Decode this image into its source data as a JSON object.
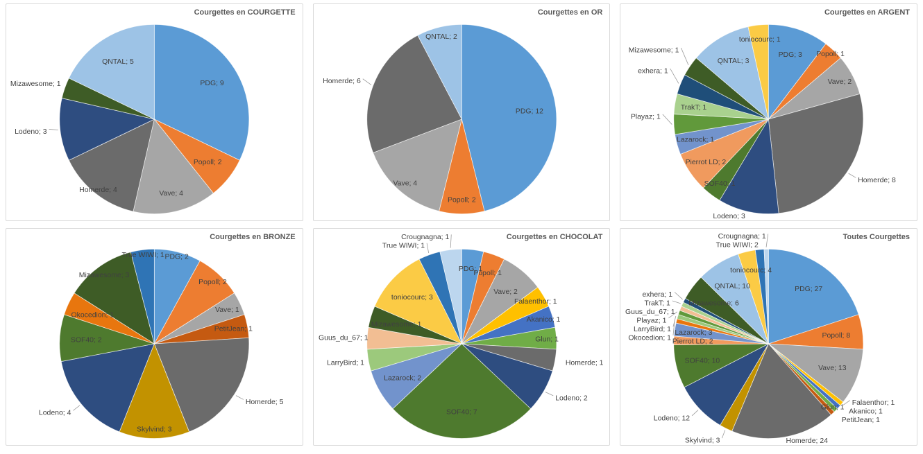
{
  "app": {
    "background": "#FFFFFF",
    "panel_border": "#D9D9D9",
    "title_color": "#595959",
    "label_color": "#404040",
    "leader_color": "#9B9B9B"
  },
  "label_format": "{name}; {value}",
  "palette": {
    "PDG": "#5B9BD5",
    "Popoll": "#ED7D31",
    "Vave": "#A6A6A6",
    "Homerde": "#6B6B6B",
    "Lodeno": "#2E4D80",
    "Mizawesome": "#3E5C26",
    "QNTAL": "#9DC3E6",
    "toniocourc": "#FBCB45",
    "True WIWI": "#2F74B5",
    "Crougnagna": "#BCD6EE",
    "exhera": "#1F4E79",
    "TrakT": "#A9D18E",
    "Playaz": "#61993B",
    "Lazarock": "#7293CC",
    "Pierrot LD": "#F09A5E",
    "SOF40": "#4E7A2E",
    "Skylvind": "#C29200",
    "PetitJean": "#C55A11",
    "Okocedion": "#E8760E",
    "LarryBird": "#9CC97C",
    "Guus_du_67": "#F2BE93",
    "Falaenthor": "#FFC000",
    "Akanico": "#4472C4",
    "Glun": "#70AD47"
  },
  "chart_data": [
    {
      "type": "pie",
      "title": "Courgettes en COURGETTE",
      "total": 28,
      "direction": "clockwise",
      "start_angle_deg": 0,
      "legend": "none",
      "slices": [
        {
          "name": "PDG",
          "value": 9
        },
        {
          "name": "Popoll",
          "value": 2
        },
        {
          "name": "Vave",
          "value": 4,
          "label_r": 0.8
        },
        {
          "name": "Homerde",
          "value": 4,
          "label_r": 0.95
        },
        {
          "name": "Lodeno",
          "value": 3,
          "label_out": true
        },
        {
          "name": "Mizawesome",
          "value": 1
        },
        {
          "name": "QNTAL",
          "value": 5
        }
      ]
    },
    {
      "type": "pie",
      "title": "Courgettes en OR",
      "total": 26,
      "direction": "clockwise",
      "start_angle_deg": 0,
      "legend": "none",
      "slices": [
        {
          "name": "PDG",
          "value": 12
        },
        {
          "name": "Popoll",
          "value": 2,
          "label_r": 0.85
        },
        {
          "name": "Vave",
          "value": 4,
          "label_r": 0.9
        },
        {
          "name": "Homerde",
          "value": 6,
          "label_out": true
        },
        {
          "name": "QNTAL",
          "value": 2,
          "label_in": true,
          "label_r": 0.9
        }
      ]
    },
    {
      "type": "pie",
      "title": "Courgettes en ARGENT",
      "total": 29,
      "direction": "clockwise",
      "start_angle_deg": 0,
      "legend": "none",
      "slices": [
        {
          "name": "PDG",
          "value": 3
        },
        {
          "name": "Popoll",
          "value": 1,
          "label_in": true,
          "label_r": 0.95
        },
        {
          "name": "Vave",
          "value": 2,
          "label_r": 0.85
        },
        {
          "name": "Homerde",
          "value": 8,
          "label_out": true
        },
        {
          "name": "Lodeno",
          "value": 3,
          "label_out": true
        },
        {
          "name": "SOF40",
          "value": 1,
          "label_in": true,
          "label_r": 0.85
        },
        {
          "name": "Pierrot LD",
          "value": 2,
          "label_r": 0.8
        },
        {
          "name": "Lazarock",
          "value": 1,
          "label_in": true,
          "label_r": 0.8
        },
        {
          "name": "Playaz",
          "value": 1,
          "label_out": true
        },
        {
          "name": "TrakT",
          "value": 1,
          "label_in": true,
          "label_r": 0.8
        },
        {
          "name": "exhera",
          "value": 1,
          "label_out": true
        },
        {
          "name": "Mizawesome",
          "value": 1,
          "label_out": true
        },
        {
          "name": "QNTAL",
          "value": 3
        },
        {
          "name": "toniocourc",
          "value": 1,
          "label_in": true,
          "label_r": 0.85
        }
      ]
    },
    {
      "type": "pie",
      "title": "Courgettes en BRONZE",
      "total": 25,
      "direction": "clockwise",
      "start_angle_deg": 0,
      "legend": "none",
      "slices": [
        {
          "name": "PDG",
          "value": 2,
          "label_r": 0.95
        },
        {
          "name": "Popoll",
          "value": 2,
          "label_r": 0.9
        },
        {
          "name": "Vave",
          "value": 1,
          "label_in": true,
          "label_r": 0.85
        },
        {
          "name": "PetitJean",
          "value": 1,
          "label_in": true,
          "label_r": 0.85
        },
        {
          "name": "Homerde",
          "value": 5,
          "label_out": true
        },
        {
          "name": "Skylvind",
          "value": 3,
          "label_r": 0.9
        },
        {
          "name": "Lodeno",
          "value": 4,
          "label_out": true
        },
        {
          "name": "SOF40",
          "value": 2
        },
        {
          "name": "Okocedion",
          "value": 1,
          "label_in": true
        },
        {
          "name": "Mizawesome",
          "value": 3,
          "label_r": 0.9
        },
        {
          "name": "True WIWI",
          "value": 1,
          "label_in": true,
          "label_r": 0.95
        }
      ]
    },
    {
      "type": "pie",
      "title": "Courgettes en CHOCOLAT",
      "total": 27,
      "direction": "clockwise",
      "start_angle_deg": 0,
      "legend": "none",
      "slices": [
        {
          "name": "PDG",
          "value": 1,
          "label_in": true,
          "label_r": 0.8
        },
        {
          "name": "Popoll",
          "value": 1,
          "label_in": true,
          "label_r": 0.8
        },
        {
          "name": "Vave",
          "value": 2
        },
        {
          "name": "Falaenthor",
          "value": 1,
          "label_in": true,
          "label_r": 0.9
        },
        {
          "name": "Akanico",
          "value": 1,
          "label_in": true,
          "label_r": 0.9
        },
        {
          "name": "Glun",
          "value": 1,
          "label_in": true,
          "label_r": 0.9
        },
        {
          "name": "Homerde",
          "value": 1,
          "label_out": true
        },
        {
          "name": "Lodeno",
          "value": 2,
          "label_out": true
        },
        {
          "name": "SOF40",
          "value": 7
        },
        {
          "name": "Lazarock",
          "value": 2
        },
        {
          "name": "LarryBird",
          "value": 1,
          "label_out": true
        },
        {
          "name": "Guus_du_67",
          "value": 1,
          "label_out": true
        },
        {
          "name": "Mizawesome",
          "value": 1,
          "label_in": true
        },
        {
          "name": "toniocourc",
          "value": 3
        },
        {
          "name": "True WIWI",
          "value": 1,
          "label_out": true
        },
        {
          "name": "Crougnagna",
          "value": 1,
          "label_out": true
        }
      ]
    },
    {
      "type": "pie",
      "title": "Toutes Courgettes",
      "total": 135,
      "direction": "clockwise",
      "start_angle_deg": 0,
      "legend": "none",
      "slices": [
        {
          "name": "PDG",
          "value": 27
        },
        {
          "name": "Popoll",
          "value": 8
        },
        {
          "name": "Vave",
          "value": 13
        },
        {
          "name": "Falaenthor",
          "value": 1,
          "label_out": true
        },
        {
          "name": "Akanico",
          "value": 1,
          "label_out": true
        },
        {
          "name": "Glun",
          "value": 1,
          "label_in": true,
          "label_r": 0.95
        },
        {
          "name": "PetitJean",
          "value": 1,
          "label_out": true
        },
        {
          "name": "Homerde",
          "value": 24,
          "label_out": true
        },
        {
          "name": "Skylvind",
          "value": 3,
          "label_out": true
        },
        {
          "name": "Lodeno",
          "value": 12,
          "label_out": true
        },
        {
          "name": "SOF40",
          "value": 10
        },
        {
          "name": "Pierrot LD",
          "value": 2,
          "label_in": true,
          "label_r": 0.8
        },
        {
          "name": "Lazarock",
          "value": 3,
          "label_in": true,
          "label_r": 0.8
        },
        {
          "name": "Okocedion",
          "value": 1,
          "label_out": true
        },
        {
          "name": "LarryBird",
          "value": 1,
          "label_out": true
        },
        {
          "name": "Playaz",
          "value": 1,
          "label_out": true
        },
        {
          "name": "Guus_du_67",
          "value": 1,
          "label_out": true
        },
        {
          "name": "TrakT",
          "value": 1,
          "label_out": true
        },
        {
          "name": "exhera",
          "value": 1,
          "label_out": true
        },
        {
          "name": "Mizawesome",
          "value": 6,
          "label_in": true
        },
        {
          "name": "QNTAL",
          "value": 10
        },
        {
          "name": "toniocourc",
          "value": 4,
          "label_in": true,
          "label_r": 0.8
        },
        {
          "name": "True WIWI",
          "value": 2,
          "label_out": true
        },
        {
          "name": "Crougnagna",
          "value": 1,
          "label_out": true
        }
      ]
    }
  ]
}
